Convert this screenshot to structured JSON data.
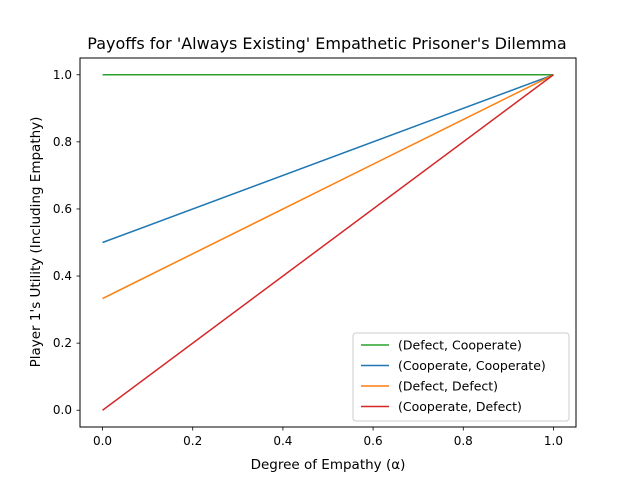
{
  "chart_data": {
    "type": "line",
    "title": "Payoffs for 'Always Existing' Empathetic Prisoner's Dilemma",
    "xlabel": "Degree of Empathy (α)",
    "ylabel": "Player 1's Utility (Including Empathy)",
    "xlim": [
      -0.05,
      1.05
    ],
    "ylim": [
      -0.05,
      1.05
    ],
    "xticks": [
      "0.0",
      "0.2",
      "0.4",
      "0.6",
      "0.8",
      "1.0"
    ],
    "yticks": [
      "0.0",
      "0.2",
      "0.4",
      "0.6",
      "0.8",
      "1.0"
    ],
    "grid": false,
    "legend_position": "lower-right",
    "series": [
      {
        "name": "(Defect, Cooperate)",
        "color": "#2ca02c",
        "x": [
          0,
          1
        ],
        "y": [
          1.0,
          1.0
        ]
      },
      {
        "name": "(Cooperate, Cooperate)",
        "color": "#1f77b4",
        "x": [
          0,
          1
        ],
        "y": [
          0.5,
          1.0
        ]
      },
      {
        "name": "(Defect, Defect)",
        "color": "#ff7f0e",
        "x": [
          0,
          1
        ],
        "y": [
          0.333,
          1.0
        ]
      },
      {
        "name": "(Cooperate, Defect)",
        "color": "#d62728",
        "x": [
          0,
          1
        ],
        "y": [
          0.0,
          1.0
        ]
      }
    ]
  }
}
